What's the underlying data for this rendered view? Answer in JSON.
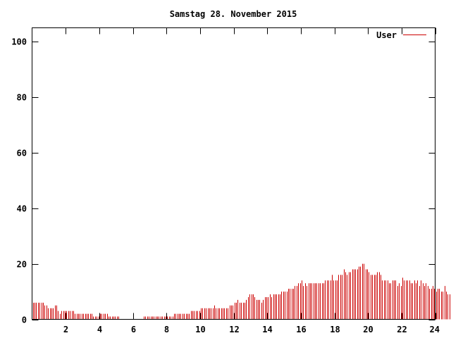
{
  "chart_data": {
    "type": "bar",
    "title": "Samstag 28. November 2015",
    "xlabel": "",
    "ylabel": "",
    "xlim": [
      0,
      24
    ],
    "ylim": [
      0,
      105
    ],
    "x_ticks": [
      {
        "value": 2,
        "label": "2"
      },
      {
        "value": 4,
        "label": "4"
      },
      {
        "value": 6,
        "label": "6"
      },
      {
        "value": 8,
        "label": "8"
      },
      {
        "value": 10,
        "label": "10"
      },
      {
        "value": 12,
        "label": "12"
      },
      {
        "value": 14,
        "label": "14"
      },
      {
        "value": 16,
        "label": "16"
      },
      {
        "value": 18,
        "label": "18"
      },
      {
        "value": 20,
        "label": "20"
      },
      {
        "value": 22,
        "label": "22"
      },
      {
        "value": 24,
        "label": "24"
      }
    ],
    "y_ticks": [
      {
        "value": 0,
        "label": "0"
      },
      {
        "value": 20,
        "label": "20"
      },
      {
        "value": 40,
        "label": "40"
      },
      {
        "value": 60,
        "label": "60"
      },
      {
        "value": 80,
        "label": "80"
      },
      {
        "value": 100,
        "label": "100"
      }
    ],
    "grid": false,
    "legend_position": "top-right",
    "series": [
      {
        "name": "User",
        "color": "#cc0000",
        "interval_hours": 0.1,
        "values": [
          6,
          6,
          6,
          6,
          6,
          6,
          6,
          5,
          5,
          4,
          4,
          4,
          4,
          5,
          5,
          3,
          2,
          3,
          3,
          3,
          3,
          3,
          3,
          3,
          3,
          2,
          2,
          2,
          2,
          2,
          2,
          2,
          2,
          2,
          2,
          2,
          1,
          1,
          1,
          1,
          2,
          2,
          2,
          2,
          2,
          1,
          1,
          1,
          1,
          1,
          1,
          1,
          0,
          0,
          0,
          0,
          0,
          0,
          0,
          0,
          0,
          0,
          0,
          0,
          0,
          0,
          1,
          1,
          1,
          1,
          1,
          1,
          1,
          1,
          1,
          1,
          1,
          1,
          1,
          1,
          1,
          1,
          1,
          1,
          2,
          2,
          2,
          2,
          2,
          2,
          2,
          2,
          2,
          2,
          3,
          3,
          3,
          3,
          3,
          3,
          4,
          4,
          4,
          4,
          4,
          4,
          4,
          4,
          5,
          4,
          4,
          4,
          4,
          4,
          4,
          4,
          4,
          5,
          5,
          5,
          6,
          6,
          7,
          6,
          6,
          6,
          6,
          7,
          8,
          9,
          9,
          9,
          8,
          7,
          7,
          7,
          6,
          7,
          8,
          8,
          8,
          9,
          8,
          9,
          9,
          9,
          9,
          9,
          10,
          10,
          10,
          10,
          11,
          11,
          11,
          11,
          12,
          12,
          13,
          13,
          14,
          12,
          13,
          12,
          13,
          13,
          13,
          13,
          13,
          13,
          13,
          13,
          13,
          13,
          14,
          14,
          14,
          14,
          16,
          14,
          14,
          14,
          16,
          16,
          16,
          18,
          17,
          16,
          17,
          17,
          18,
          18,
          18,
          18,
          19,
          19,
          20,
          20,
          18,
          18,
          17,
          16,
          16,
          16,
          16,
          17,
          17,
          16,
          14,
          14,
          14,
          14,
          13,
          13,
          14,
          14,
          14,
          12,
          13,
          12,
          15,
          14,
          14,
          14,
          14,
          13,
          13,
          14,
          13,
          14,
          12,
          14,
          13,
          12,
          13,
          12,
          11,
          11,
          12,
          11,
          10,
          11,
          11,
          10,
          10,
          12,
          10,
          9,
          9,
          10,
          10,
          10,
          11,
          10
        ]
      }
    ]
  }
}
